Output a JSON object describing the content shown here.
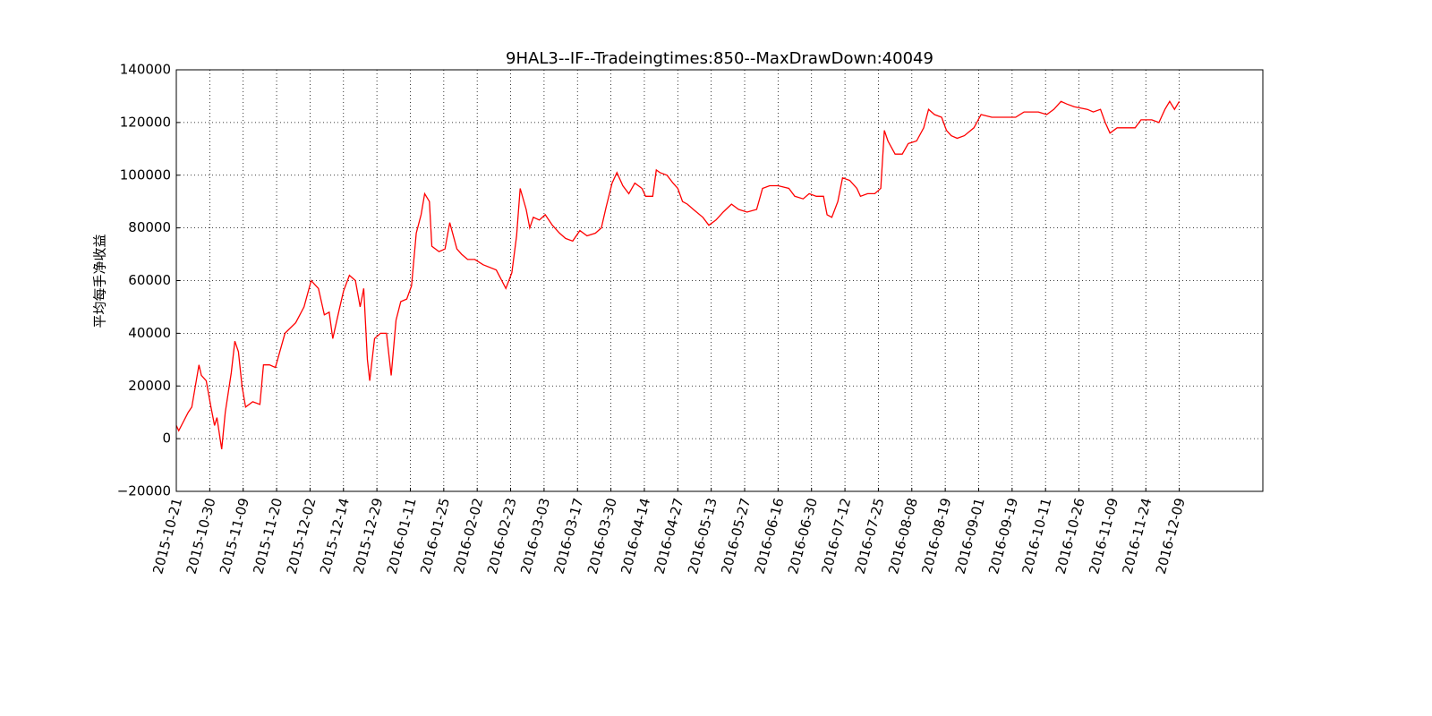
{
  "chart_data": {
    "type": "line",
    "title": "9HAL3--IF--Tradeingtimes:850--MaxDrawDown:40049",
    "y_label": "平均每手净收益",
    "color": "#ff0000",
    "grid": true,
    "xlim": [
      0,
      910
    ],
    "ylim": [
      -20000,
      140000
    ],
    "yticks": [
      {
        "value": -20000,
        "label": "−20000"
      },
      0,
      20000,
      40000,
      60000,
      80000,
      100000,
      120000,
      140000
    ],
    "xticks": [
      {
        "value": 0,
        "label": "2015-10-21"
      },
      {
        "value": 28,
        "label": "2015-10-30"
      },
      {
        "value": 56,
        "label": "2015-11-09"
      },
      {
        "value": 84,
        "label": "2015-11-20"
      },
      {
        "value": 112,
        "label": "2015-12-02"
      },
      {
        "value": 140,
        "label": "2015-12-14"
      },
      {
        "value": 168,
        "label": "2015-12-29"
      },
      {
        "value": 196,
        "label": "2016-01-11"
      },
      {
        "value": 224,
        "label": "2016-01-25"
      },
      {
        "value": 252,
        "label": "2016-02-02"
      },
      {
        "value": 280,
        "label": "2016-02-23"
      },
      {
        "value": 308,
        "label": "2016-03-03"
      },
      {
        "value": 336,
        "label": "2016-03-17"
      },
      {
        "value": 364,
        "label": "2016-03-30"
      },
      {
        "value": 392,
        "label": "2016-04-14"
      },
      {
        "value": 420,
        "label": "2016-04-27"
      },
      {
        "value": 448,
        "label": "2016-05-13"
      },
      {
        "value": 476,
        "label": "2016-05-27"
      },
      {
        "value": 504,
        "label": "2016-06-16"
      },
      {
        "value": 532,
        "label": "2016-06-30"
      },
      {
        "value": 560,
        "label": "2016-07-12"
      },
      {
        "value": 588,
        "label": "2016-07-25"
      },
      {
        "value": 616,
        "label": "2016-08-08"
      },
      {
        "value": 644,
        "label": "2016-08-19"
      },
      {
        "value": 672,
        "label": "2016-09-01"
      },
      {
        "value": 700,
        "label": "2016-09-19"
      },
      {
        "value": 728,
        "label": "2016-10-11"
      },
      {
        "value": 756,
        "label": "2016-10-26"
      },
      {
        "value": 784,
        "label": "2016-11-09"
      },
      {
        "value": 812,
        "label": "2016-11-24"
      },
      {
        "value": 840,
        "label": "2016-12-09"
      }
    ],
    "x": [
      0,
      2,
      10,
      13,
      19,
      21,
      25,
      29,
      32,
      34,
      38,
      41,
      46,
      49,
      52,
      55,
      58,
      64,
      70,
      73,
      78,
      83,
      91,
      100,
      107,
      113,
      119,
      124,
      128,
      131,
      136,
      140,
      145,
      150,
      154,
      157,
      160,
      162,
      166,
      171,
      176,
      180,
      184,
      188,
      193,
      197,
      201,
      205,
      208,
      212,
      214,
      220,
      225,
      229,
      235,
      239,
      244,
      250,
      257,
      268,
      276,
      281,
      285,
      288,
      293,
      296,
      299,
      304,
      309,
      315,
      321,
      326,
      332,
      338,
      344,
      351,
      356,
      360,
      365,
      369,
      374,
      379,
      384,
      390,
      393,
      399,
      402,
      405,
      411,
      416,
      420,
      424,
      428,
      433,
      441,
      446,
      452,
      458,
      465,
      471,
      478,
      486,
      491,
      497,
      504,
      513,
      518,
      525,
      530,
      536,
      542,
      545,
      549,
      554,
      558,
      564,
      570,
      573,
      579,
      585,
      590,
      593,
      596,
      602,
      608,
      613,
      620,
      626,
      630,
      635,
      641,
      645,
      649,
      654,
      660,
      668,
      674,
      683,
      692,
      703,
      710,
      722,
      729,
      735,
      741,
      746,
      752,
      763,
      768,
      774,
      778,
      782,
      788,
      795,
      803,
      808,
      817,
      823,
      828,
      832,
      836,
      840
    ],
    "values": [
      5000,
      3000,
      10000,
      12000,
      28000,
      24000,
      22000,
      12000,
      5000,
      8000,
      -4000,
      10000,
      25000,
      37000,
      33000,
      20000,
      12000,
      14000,
      13000,
      28000,
      28000,
      27000,
      40000,
      44000,
      50000,
      60000,
      57000,
      47000,
      48000,
      38000,
      48000,
      56000,
      62000,
      60000,
      50000,
      57000,
      30000,
      22000,
      38000,
      40000,
      40000,
      24000,
      45000,
      52000,
      53000,
      58000,
      78000,
      85000,
      93000,
      90000,
      73000,
      71000,
      72000,
      82000,
      72000,
      70000,
      68000,
      68000,
      66000,
      64000,
      57000,
      63000,
      77000,
      95000,
      87000,
      80000,
      84000,
      83000,
      85000,
      81000,
      78000,
      76000,
      75000,
      79000,
      77000,
      78000,
      80000,
      88000,
      97000,
      101000,
      96000,
      93000,
      97000,
      95000,
      92000,
      92000,
      102000,
      101000,
      100000,
      97000,
      95000,
      90000,
      89000,
      87000,
      84000,
      81000,
      83000,
      86000,
      89000,
      87000,
      86000,
      87000,
      95000,
      96000,
      96000,
      95000,
      92000,
      91000,
      93000,
      92000,
      92000,
      85000,
      84000,
      90000,
      99000,
      98000,
      95000,
      92000,
      93000,
      93000,
      95000,
      117000,
      113000,
      108000,
      108000,
      112000,
      113000,
      118000,
      125000,
      123000,
      122000,
      117000,
      115000,
      114000,
      115000,
      118000,
      123000,
      122000,
      122000,
      122000,
      124000,
      124000,
      123000,
      125000,
      128000,
      127000,
      126000,
      125000,
      124000,
      125000,
      120000,
      116000,
      118000,
      118000,
      118000,
      121000,
      121000,
      120000,
      125000,
      128000,
      125000,
      128000
    ]
  }
}
